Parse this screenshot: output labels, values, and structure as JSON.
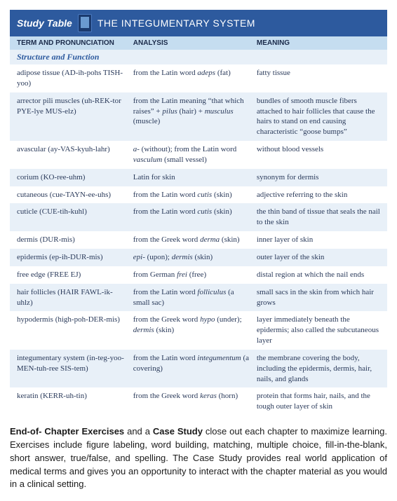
{
  "header": {
    "label": "Study Table",
    "title": "THE INTEGUMENTARY SYSTEM"
  },
  "columns": {
    "term": "TERM AND PRONUNCIATION",
    "analysis": "ANALYSIS",
    "meaning": "MEANING"
  },
  "section": "Structure and Function",
  "rows": [
    {
      "term": "adipose tissue (AD-ih-pohs TISH-yoo)",
      "analysis": "from the Latin word <em class='latin'>adeps</em> (fat)",
      "meaning": "fatty tissue"
    },
    {
      "term": "arrector pili muscles (uh-REK-tor PYE-lye MUS-elz)",
      "analysis": "from the Latin meaning “that which raises” + <em class='latin'>pilus</em> (hair) + <em class='latin'>musculus</em> (muscle)",
      "meaning": "bundles of smooth muscle fibers attached to hair follicles that cause the hairs to stand on end causing characteristic “goose bumps”"
    },
    {
      "term": "avascular (ay-VAS-kyuh-lahr)",
      "analysis": "<em class='latin'>a-</em> (without); from the Latin word <em class='latin'>vasculum</em> (small vessel)",
      "meaning": "without blood vessels"
    },
    {
      "term": "corium (KO-ree-uhm)",
      "analysis": "Latin for skin",
      "meaning": "synonym for dermis"
    },
    {
      "term": "cutaneous (cue-TAYN-ee-uhs)",
      "analysis": "from the Latin word <em class='latin'>cutis</em> (skin)",
      "meaning": "adjective referring to the skin"
    },
    {
      "term": "cuticle (CUE-tih-kuhl)",
      "analysis": "from the Latin word <em class='latin'>cutis</em> (skin)",
      "meaning": "the thin band of tissue that seals the nail to the skin"
    },
    {
      "term": "dermis (DUR-mis)",
      "analysis": "from the Greek word <em class='latin'>derma</em> (skin)",
      "meaning": "inner layer of skin"
    },
    {
      "term": "epidermis (ep-ih-DUR-mis)",
      "analysis": "<em class='latin'>epi-</em> (upon); <em class='latin'>dermis</em> (skin)",
      "meaning": "outer layer of the skin"
    },
    {
      "term": "free edge (FREE EJ)",
      "analysis": "from German <em class='latin'>frei</em> (free)",
      "meaning": "distal region at which the nail ends"
    },
    {
      "term": "hair follicles (HAIR FAWL-ik-uhlz)",
      "analysis": "from the Latin word <em class='latin'>folliculus</em> (a small sac)",
      "meaning": "small sacs in the skin from which hair grows"
    },
    {
      "term": "hypodermis (high-poh-DER-mis)",
      "analysis": "from the Greek word <em class='latin'>hypo</em> (under); <em class='latin'>dermis</em> (skin)",
      "meaning": "layer immediately beneath the epidermis; also called the subcutaneous layer"
    },
    {
      "term": "integumentary system (in-teg-yoo-MEN-tuh-ree SIS-tem)",
      "analysis": "from the Latin word <em class='latin'>integumentum</em> (a covering)",
      "meaning": "the membrane covering the body, including the epidermis, dermis, hair, nails, and glands"
    },
    {
      "term": "keratin (KERR-uh-tin)",
      "analysis": "from the Greek word <em class='latin'>keras</em> (horn)",
      "meaning": "protein that forms hair, nails, and the tough outer layer of skin"
    }
  ],
  "bodyText": {
    "seg1_bold": "End-of- Chapter Exercises",
    "seg2": " and a ",
    "seg3_bold": "Case Study",
    "seg4": " close out each chapter to maximize learning. Exercises include figure labeling, word building, matching, multiple choice, fill-in-the-blank, short answer, true/false, and spelling. The Case Study provides real world application of medical terms and gives you an opportunity to interact with the chapter material as you would in a clinical setting."
  },
  "colors": {
    "headerBg": "#2d5a9e",
    "headerText": "#ffffff",
    "colHeaderBg": "#c5ddf0",
    "sectionBg": "#e8f0f8",
    "sectionText": "#2d5a9e",
    "rowAltBg": "#e8f0f8",
    "rowText": "#2a3a5a",
    "bodyTextColor": "#1a1a1a"
  }
}
